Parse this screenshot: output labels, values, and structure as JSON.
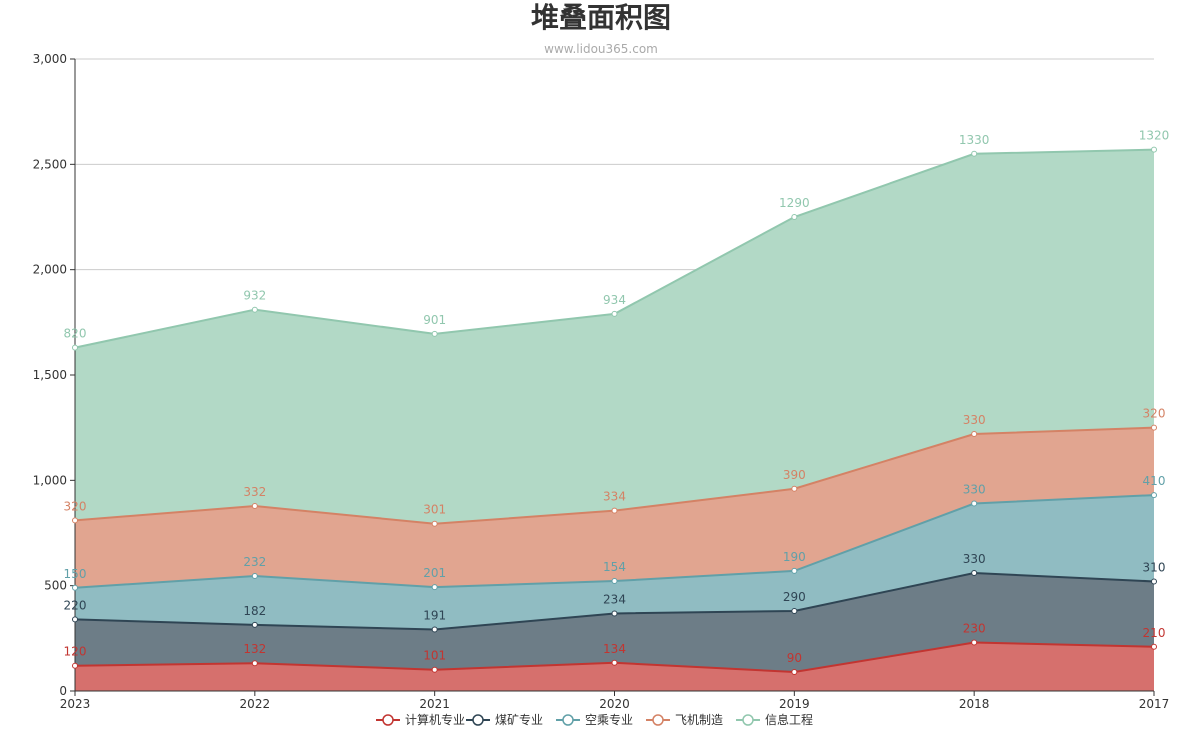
{
  "chart_data": {
    "type": "area",
    "stacked": true,
    "title": "堆叠面积图",
    "subtitle": "www.lidou365.com",
    "categories": [
      "2023",
      "2022",
      "2021",
      "2020",
      "2019",
      "2018",
      "2017"
    ],
    "ylim": [
      0,
      3000
    ],
    "yticks": [
      "0",
      "500",
      "1,000",
      "1,500",
      "2,000",
      "2,500",
      "3,000"
    ],
    "ytick_values": [
      0,
      500,
      1000,
      1500,
      2000,
      2500,
      3000
    ],
    "grid": true,
    "legend_position": "bottom",
    "series": [
      {
        "name": "计算机专业",
        "color": "#c23531",
        "fill": "#d6706d",
        "values": [
          120,
          132,
          101,
          134,
          90,
          230,
          210
        ]
      },
      {
        "name": "煤矿专业",
        "color": "#2f4554",
        "fill": "#6d7d87",
        "values": [
          220,
          182,
          191,
          234,
          290,
          330,
          310
        ]
      },
      {
        "name": "空乘专业",
        "color": "#61a0a8",
        "fill": "#90bcc2",
        "values": [
          150,
          232,
          201,
          154,
          190,
          330,
          410
        ]
      },
      {
        "name": "飞机制造",
        "color": "#d48265",
        "fill": "#e1a590",
        "values": [
          320,
          332,
          301,
          334,
          390,
          330,
          320
        ]
      },
      {
        "name": "信息工程",
        "color": "#91c7ae",
        "fill": "#b2d9c6",
        "values": [
          820,
          932,
          901,
          934,
          1290,
          1330,
          1320
        ]
      }
    ]
  }
}
